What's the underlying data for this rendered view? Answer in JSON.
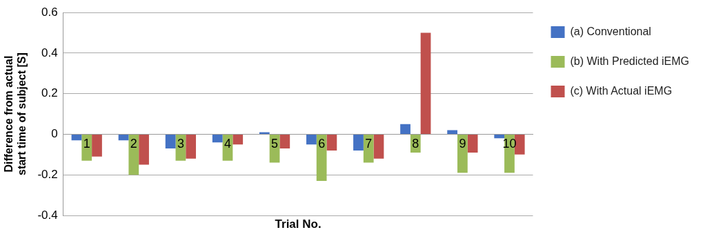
{
  "chart_data": {
    "type": "bar",
    "xlabel": "Trial No.",
    "ylabel": "Difference from actual start time of subject [S]",
    "categories": [
      "1",
      "2",
      "3",
      "4",
      "5",
      "6",
      "7",
      "8",
      "9",
      "10"
    ],
    "series": [
      {
        "name": "(a) Conventional",
        "color": "#4472c4",
        "values": [
          -0.03,
          -0.03,
          -0.07,
          -0.04,
          0.01,
          -0.05,
          -0.08,
          0.05,
          0.02,
          -0.02
        ]
      },
      {
        "name": "(b) With Predicted iEMG",
        "color": "#9bbb59",
        "values": [
          -0.13,
          -0.2,
          -0.13,
          -0.13,
          -0.14,
          -0.23,
          -0.14,
          -0.09,
          -0.19,
          -0.19
        ]
      },
      {
        "name": "(c) With Actual iEMG",
        "color": "#c0504d",
        "values": [
          -0.11,
          -0.15,
          -0.12,
          -0.05,
          -0.07,
          -0.08,
          -0.12,
          0.5,
          -0.09,
          -0.1
        ]
      }
    ],
    "ylim": [
      -0.4,
      0.6
    ],
    "yticks": [
      -0.4,
      -0.2,
      0,
      0.2,
      0.4,
      0.6
    ],
    "grid": "y",
    "legend": "right"
  }
}
